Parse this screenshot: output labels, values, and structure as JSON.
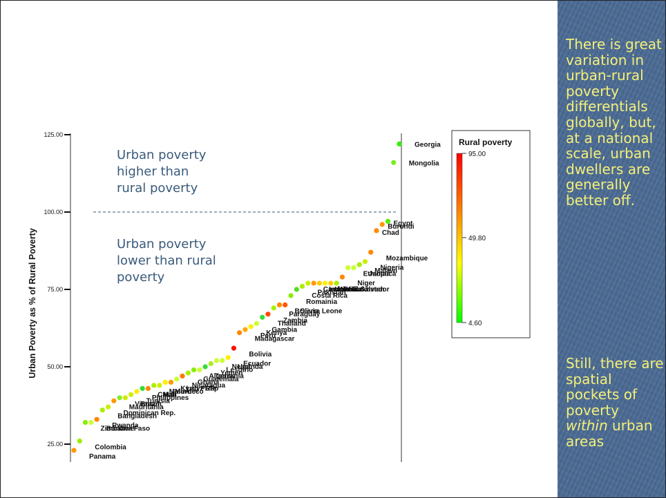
{
  "chart_data": {
    "type": "scatter",
    "ylabel": "Urban Poverty as % of Rural Poverty",
    "xlabel": "",
    "ylim": [
      20,
      130
    ],
    "yticks": [
      "25.00",
      "50.00",
      "75.00",
      "100.00",
      "125.00"
    ],
    "ytick_values": [
      25,
      50,
      75,
      100,
      125
    ],
    "reference_line": 100,
    "annotations": {
      "above": [
        "Urban poverty",
        "higher than",
        "rural poverty"
      ],
      "below": [
        "Urban poverty",
        "lower than rural",
        "poverty"
      ]
    },
    "legend": {
      "title": "Rural poverty",
      "max": "95.00",
      "mid": "49.80",
      "min": "4.60",
      "colors": [
        "#ff0000",
        "#ff8800",
        "#ffff00",
        "#00ff00"
      ]
    },
    "points": [
      {
        "y": 23,
        "color": "#ff9a00",
        "label": "Panama"
      },
      {
        "y": 26,
        "color": "#99ee00",
        "label": "Colombia"
      },
      {
        "y": 32,
        "color": "#88ee00",
        "label": "Zimbabwe"
      },
      {
        "y": 32,
        "color": "#ccff33",
        "label": "Burkina Faso"
      },
      {
        "y": 33,
        "color": "#ff8800",
        "label": "Rwanda"
      },
      {
        "y": 36,
        "color": "#aaee00",
        "label": "Bangladesh"
      },
      {
        "y": 37,
        "color": "#ccee00",
        "label": "Dominican Rep."
      },
      {
        "y": 39,
        "color": "#ff9900",
        "label": "Mauritania"
      },
      {
        "y": 40,
        "color": "#88ee22",
        "label": "Vietnam"
      },
      {
        "y": 40,
        "color": "#ccee00",
        "label": "Brazil"
      },
      {
        "y": 41,
        "color": "#ccee00",
        "label": "Tunisia"
      },
      {
        "y": 42,
        "color": "#ffee00",
        "label": "Philippines"
      },
      {
        "y": 43,
        "color": "#33dd33",
        "label": "CMali"
      },
      {
        "y": 43,
        "color": "#ff8800",
        "label": "Mali"
      },
      {
        "y": 44,
        "color": "#aaee00",
        "label": "Malawi"
      },
      {
        "y": 44,
        "color": "#ccee00",
        "label": "Morocco"
      },
      {
        "y": 45,
        "color": "#ffee00",
        "label": "Kyrgyz Rep"
      },
      {
        "y": 45,
        "color": "#ff9900",
        "label": "Lao PDR"
      },
      {
        "y": 46,
        "color": "#ccff33",
        "label": "Nicaragua"
      },
      {
        "y": 47,
        "color": "#ff7700",
        "label": "Ghana"
      },
      {
        "y": 48,
        "color": "#aaee00",
        "label": "Guatemala"
      },
      {
        "y": 49,
        "color": "#88ee00",
        "label": "Algeria"
      },
      {
        "y": 49,
        "color": "#ccff33",
        "label": "Tanzania"
      },
      {
        "y": 50,
        "color": "#33dd33",
        "label": "Yemen"
      },
      {
        "y": 51,
        "color": "#aaee22",
        "label": "Lesotho"
      },
      {
        "y": 52,
        "color": "#ccff33",
        "label": "Nepal"
      },
      {
        "y": 52,
        "color": "#ccff33",
        "label": "Uganda"
      },
      {
        "y": 53,
        "color": "#ffee00",
        "label": "Ecuador"
      },
      {
        "y": 56,
        "color": "#ff1100",
        "label": "Bolivia"
      },
      {
        "y": 61,
        "color": "#ff8800",
        "label": "Madagascar"
      },
      {
        "y": 62,
        "color": "#ffaa00",
        "label": "Peru"
      },
      {
        "y": 63,
        "color": "#ffee00",
        "label": "Kenya"
      },
      {
        "y": 64,
        "color": "#ccff33",
        "label": "Gambia"
      },
      {
        "y": 66,
        "color": "#33dd33",
        "label": "Thailand"
      },
      {
        "y": 67,
        "color": "#ff4400",
        "label": "Zambia"
      },
      {
        "y": 69,
        "color": "#aaee00",
        "label": "Paraguay"
      },
      {
        "y": 70,
        "color": "#ff8800",
        "label": "BOlivia"
      },
      {
        "y": 70,
        "color": "#ff5500",
        "label": "Sierra Leone"
      },
      {
        "y": 73,
        "color": "#88ee00",
        "label": "Romainia"
      },
      {
        "y": 75,
        "color": "#55dd22",
        "label": "Costa Rica"
      },
      {
        "y": 76,
        "color": "#aaee00",
        "label": "Pakistan"
      },
      {
        "y": 77,
        "color": "#ccee00",
        "label": "Cambodia"
      },
      {
        "y": 77,
        "color": "#ff9900",
        "label": "Indonesia"
      },
      {
        "y": 77,
        "color": "#ffcc00",
        "label": "India"
      },
      {
        "y": 77,
        "color": "#ffee00",
        "label": "Mexico"
      },
      {
        "y": 77,
        "color": "#ffcc00",
        "label": "Kazakhstan"
      },
      {
        "y": 77,
        "color": "#aaee00",
        "label": "El Salvador"
      },
      {
        "y": 79,
        "color": "#ff8800",
        "label": "Niger"
      },
      {
        "y": 82,
        "color": "#ccff33",
        "label": "Ethiopia"
      },
      {
        "y": 82,
        "color": "#ccff33",
        "label": "Jamaica"
      },
      {
        "y": 83,
        "color": "#aaee00",
        "label": "Malawi"
      },
      {
        "y": 84,
        "color": "#ccee00",
        "label": "Nigeria"
      },
      {
        "y": 87,
        "color": "#ff8800",
        "label": "Mozambique"
      },
      {
        "y": 94,
        "color": "#ff8800",
        "label": "Chad"
      },
      {
        "y": 96,
        "color": "#ff9900",
        "label": "Burundi"
      },
      {
        "y": 97,
        "color": "#55ee00",
        "label": "Egypt"
      },
      {
        "y": 116,
        "color": "#77ee22",
        "label": "Mongolia"
      },
      {
        "y": 122,
        "color": "#33ee00",
        "label": "Georgia"
      }
    ]
  },
  "sidebar": {
    "text1": "There is great variation in urban-rural poverty differentials globally, but, at a national scale, urban dwellers are generally better off.",
    "text2_part1": "Still, there are spatial pockets of poverty",
    "text2_emph": "within",
    "text2_part2": "urban areas"
  }
}
